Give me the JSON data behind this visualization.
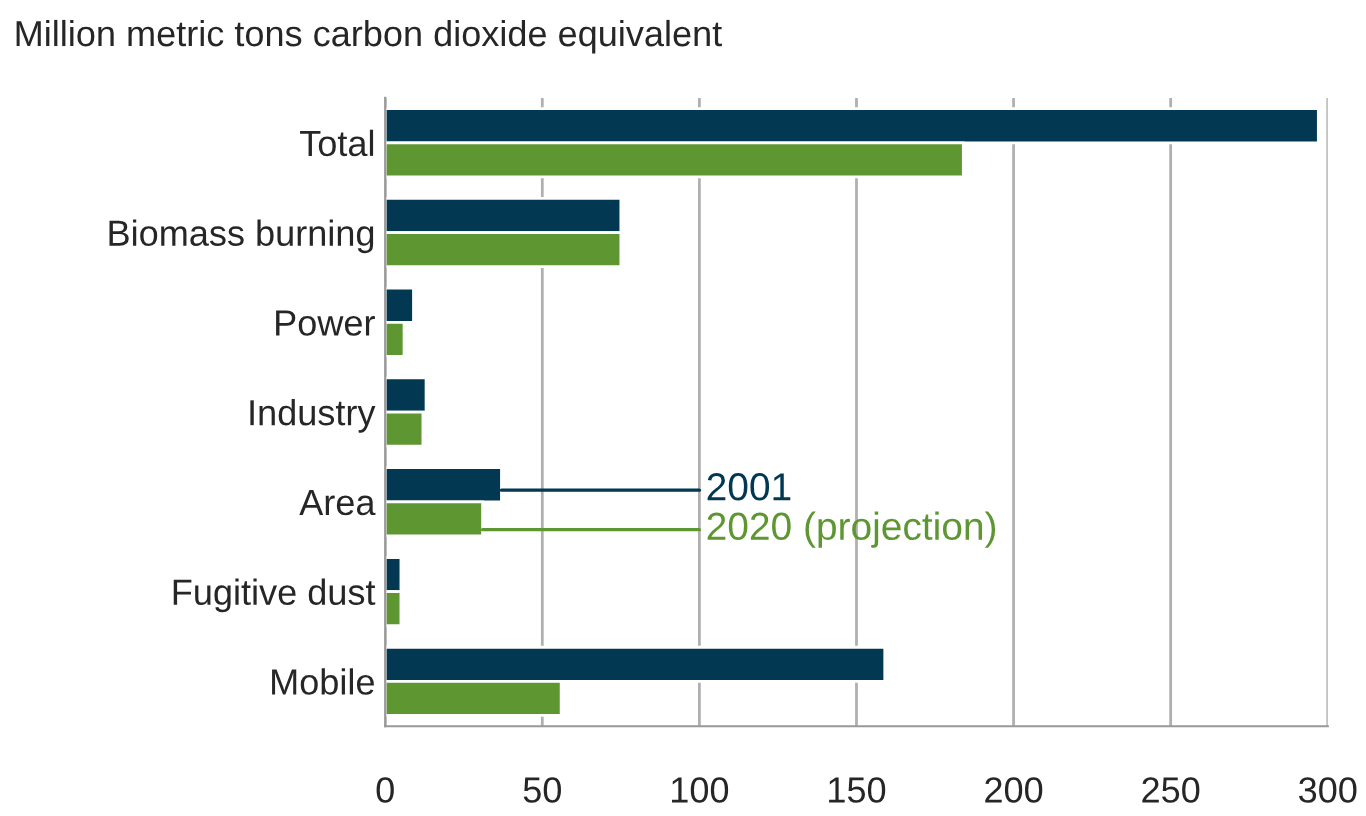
{
  "chart_data": {
    "type": "bar",
    "orientation": "horizontal",
    "title": "Million metric tons carbon dioxide equivalent",
    "categories": [
      "Total",
      "Biomass burning",
      "Power",
      "Industry",
      "Area",
      "Fugitive dust",
      "Mobile"
    ],
    "series": [
      {
        "name": "2001",
        "color": "#023852",
        "values": [
          297,
          75,
          9,
          13,
          37,
          5,
          159
        ]
      },
      {
        "name": "2020 (projection)",
        "color": "#5e9732",
        "values": [
          184,
          75,
          6,
          12,
          31,
          5,
          56
        ]
      }
    ],
    "xlim": [
      0,
      300
    ],
    "xticks": [
      0,
      50,
      100,
      150,
      200,
      250,
      300
    ],
    "grid": "x",
    "legend": false
  }
}
